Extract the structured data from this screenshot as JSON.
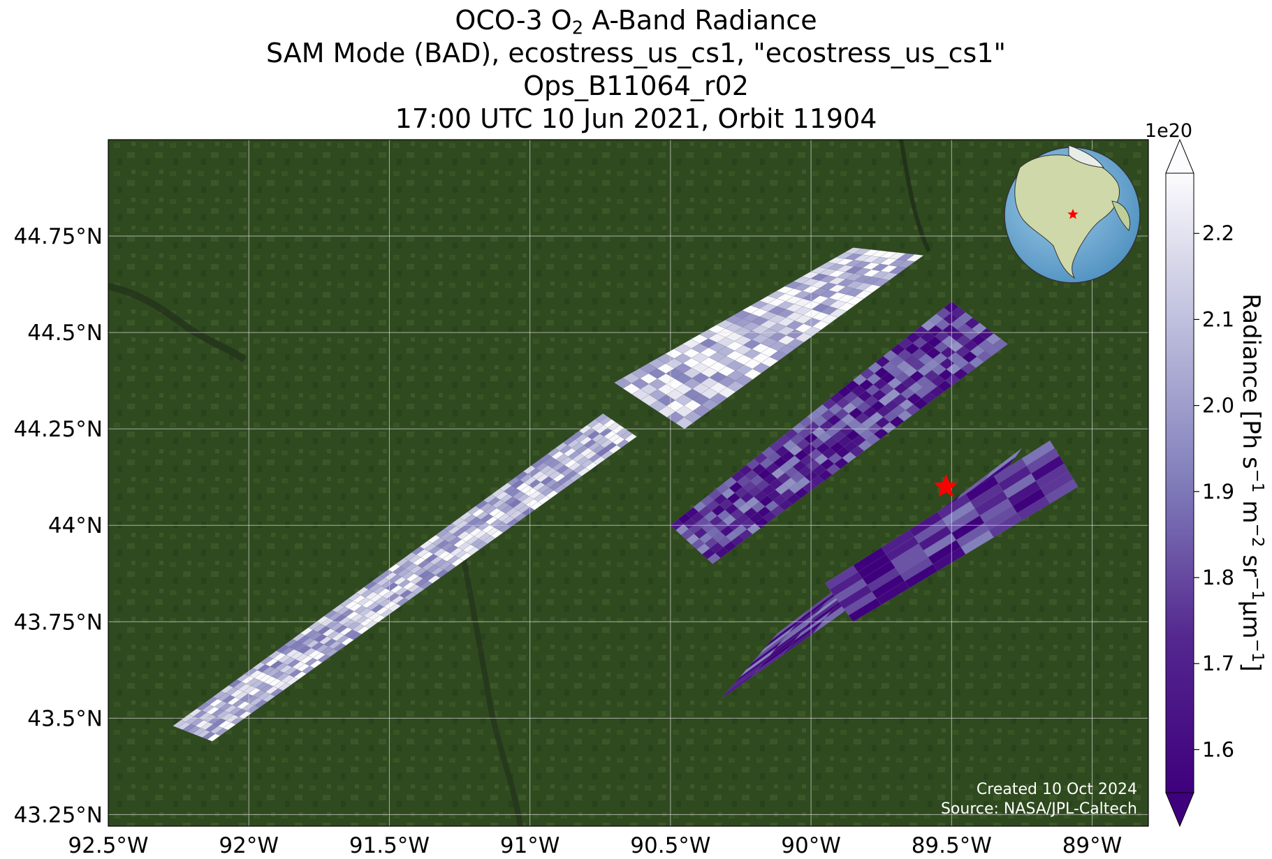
{
  "title": {
    "line1_pre": "OCO-3 O",
    "line1_sub": "2",
    "line1_post": " A-Band Radiance",
    "line2": "SAM Mode (BAD), ecostress_us_cs1, \"ecostress_us_cs1\"",
    "line3": "Ops_B11064_r02",
    "line4": "17:00 UTC 10 Jun 2021, Orbit 11904"
  },
  "credits": {
    "created": "Created 10 Oct 2024",
    "source": "Source: NASA/JPL-Caltech"
  },
  "colors": {
    "background_land": "#2f4a1f",
    "low": "#3f007d",
    "mid": "#9e9ac8",
    "high": "#fcfbfd",
    "marker": "#ff0000",
    "grid": "#dddddd"
  },
  "chart_data": {
    "type": "heatmap",
    "projection": "map",
    "x_axis": {
      "range": [
        -92.5,
        -88.8
      ],
      "ticks": [
        -92.5,
        -92.0,
        -91.5,
        -91.0,
        -90.5,
        -90.0,
        -89.5,
        -89.0
      ],
      "tick_labels": [
        "92.5°W",
        "92°W",
        "91.5°W",
        "91°W",
        "90.5°W",
        "90°W",
        "89.5°W",
        "89°W"
      ]
    },
    "y_axis": {
      "range": [
        43.22,
        45.0
      ],
      "ticks": [
        43.25,
        43.5,
        43.75,
        44.0,
        44.25,
        44.5,
        44.75
      ],
      "tick_labels": [
        "43.25°N",
        "43.5°N",
        "43.75°N",
        "44°N",
        "44.25°N",
        "44.5°N",
        "44.75°N"
      ]
    },
    "grid": true,
    "colorbar": {
      "label_pre": "Radiance [Ph s",
      "label_sup1": "−1",
      "label_mid1": " m",
      "label_sup2": "−2",
      "label_mid2": " sr",
      "label_sup3": "−1",
      "label_mid3": "μm",
      "label_sup4": "−1",
      "label_post": "]",
      "exponent": "1e20",
      "range": [
        1.55,
        2.27
      ],
      "ticks": [
        1.6,
        1.7,
        1.8,
        1.9,
        2.0,
        2.1,
        2.2
      ],
      "tick_labels": [
        "1.6",
        "1.7",
        "1.8",
        "1.9",
        "2.0",
        "2.1",
        "2.2"
      ],
      "extend": "both",
      "colormap": "Purples_r"
    },
    "target": {
      "lon": -89.52,
      "lat": 44.1,
      "marker": "red-star"
    },
    "swaths": [
      {
        "name": "long diagonal swath",
        "corners_lonlat": [
          [
            -92.27,
            43.48
          ],
          [
            -92.13,
            43.44
          ],
          [
            -90.62,
            44.23
          ],
          [
            -90.74,
            44.29
          ]
        ],
        "typical_radiance": 2.12
      },
      {
        "name": "north block",
        "corners_lonlat": [
          [
            -90.7,
            44.37
          ],
          [
            -90.45,
            44.25
          ],
          [
            -89.6,
            44.7
          ],
          [
            -89.85,
            44.72
          ]
        ],
        "typical_radiance": 2.15
      },
      {
        "name": "central block",
        "corners_lonlat": [
          [
            -90.5,
            44.0
          ],
          [
            -90.35,
            43.9
          ],
          [
            -89.3,
            44.47
          ],
          [
            -89.5,
            44.58
          ]
        ],
        "typical_radiance": 1.75
      },
      {
        "name": "southern block",
        "corners_lonlat": [
          [
            -90.32,
            43.55
          ],
          [
            -89.45,
            44.0
          ],
          [
            -89.25,
            44.2
          ],
          [
            -90.12,
            43.72
          ]
        ],
        "typical_radiance": 1.72
      },
      {
        "name": "eastern block",
        "corners_lonlat": [
          [
            -89.95,
            43.85
          ],
          [
            -89.15,
            44.22
          ],
          [
            -89.05,
            44.1
          ],
          [
            -89.85,
            43.75
          ]
        ],
        "typical_radiance": 1.7
      }
    ]
  }
}
